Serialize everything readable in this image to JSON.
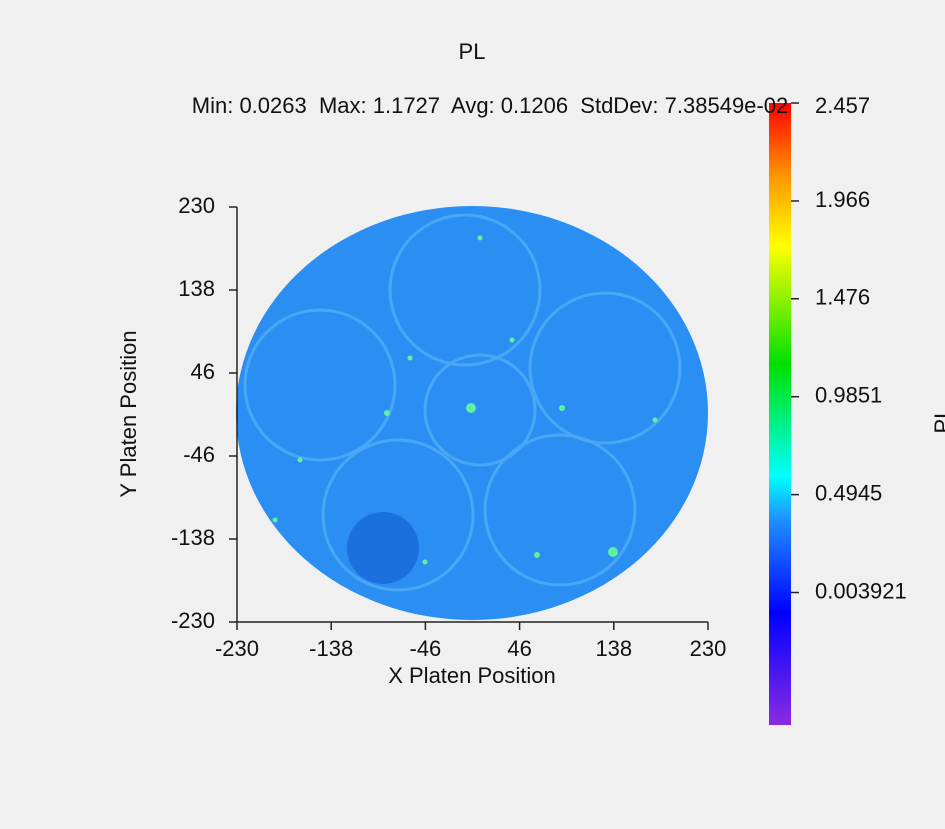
{
  "chart_data": {
    "type": "wafer-map",
    "title": "PL",
    "subtitle": "Min: 0.0263  Max: 1.1727  Avg: 0.1206  StdDev: 7.38549e-02",
    "xlabel": "X Platen Position",
    "ylabel": "Y Platen Position",
    "xlim": [
      -230,
      230
    ],
    "xticks": [
      -230,
      -138,
      -46,
      46,
      138,
      230
    ],
    "ylim": [
      -230,
      230
    ],
    "yticks": [
      -230,
      -138,
      -46,
      46,
      138,
      230
    ],
    "colorbar": {
      "label": "PL",
      "lim": [
        -0.66,
        2.457
      ],
      "ticks": [
        2.457,
        1.966,
        1.476,
        0.9851,
        0.4945,
        0.003921
      ]
    }
  }
}
